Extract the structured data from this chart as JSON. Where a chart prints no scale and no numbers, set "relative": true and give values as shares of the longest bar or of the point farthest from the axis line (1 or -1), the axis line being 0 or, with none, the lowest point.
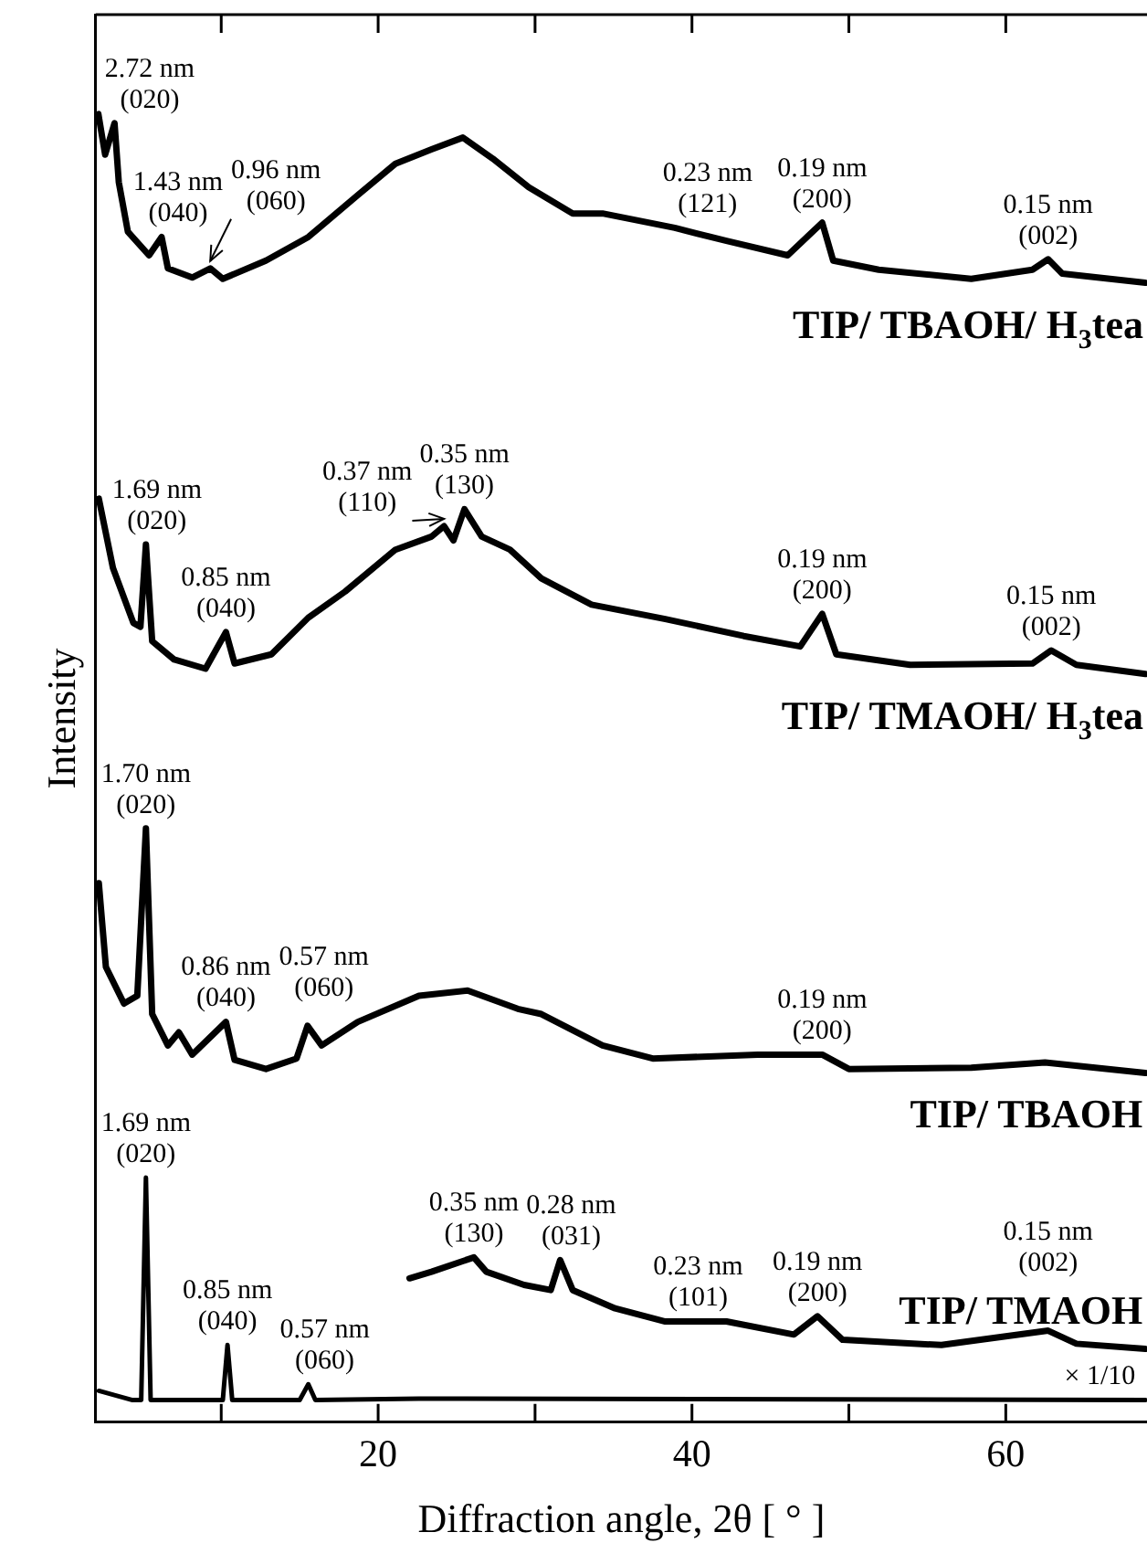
{
  "chart_data": {
    "type": "line",
    "xlabel": "Diffraction angle, 2θ [ ° ]",
    "ylabel": "Intensity",
    "relative": true,
    "xlim": [
      2,
      69
    ],
    "xticks": [
      {
        "value": 10,
        "label": null
      },
      20,
      {
        "value": 30,
        "label": null
      },
      40,
      {
        "value": 50,
        "label": null
      },
      60
    ],
    "legend": false,
    "marker": "none",
    "line_style": "solid",
    "series": [
      {
        "name": "TIP/ TBAOH/ H$_{3}$tea",
        "color": "#000000",
        "x": [
          2.17,
          2.6,
          3.2,
          3.47,
          4.05,
          5.4,
          6.2,
          6.6,
          8.15,
          9.3,
          10.1,
          12.85,
          15.55,
          18.7,
          21.1,
          23.4,
          25.4,
          27.3,
          29.6,
          32.4,
          34.3,
          38.9,
          42.2,
          46.1,
          48.3,
          49.0,
          51.9,
          57.8,
          61.7,
          62.7,
          63.6,
          68.9
        ],
        "values": [
          1.0,
          0.969,
          0.993,
          0.948,
          0.91,
          0.892,
          0.906,
          0.882,
          0.875,
          0.882,
          0.874,
          0.888,
          0.906,
          0.938,
          0.962,
          0.973,
          0.982,
          0.966,
          0.944,
          0.924,
          0.924,
          0.913,
          0.903,
          0.892,
          0.917,
          0.888,
          0.881,
          0.874,
          0.881,
          0.889,
          0.878,
          0.871
        ]
      },
      {
        "name": "TIP/ TMAOH/ H$_{3}$tea",
        "color": "#000000",
        "x": [
          2.2,
          3.1,
          4.4,
          4.85,
          5.2,
          5.6,
          7.0,
          9.0,
          10.3,
          10.85,
          13.2,
          15.55,
          17.9,
          21.1,
          23.4,
          24.2,
          24.8,
          25.5,
          26.6,
          28.4,
          30.4,
          33.6,
          38.3,
          43.3,
          46.9,
          48.3,
          49.2,
          53.9,
          61.7,
          62.9,
          64.5,
          68.9
        ],
        "values": [
          0.706,
          0.653,
          0.611,
          0.608,
          0.671,
          0.597,
          0.583,
          0.576,
          0.604,
          0.58,
          0.587,
          0.615,
          0.635,
          0.667,
          0.677,
          0.685,
          0.674,
          0.698,
          0.677,
          0.667,
          0.645,
          0.625,
          0.614,
          0.601,
          0.593,
          0.618,
          0.587,
          0.579,
          0.58,
          0.59,
          0.579,
          0.572
        ]
      },
      {
        "name": "TIP/ TBAOH",
        "color": "#000000",
        "x": [
          2.2,
          2.65,
          3.8,
          4.65,
          5.2,
          5.6,
          6.6,
          7.3,
          8.15,
          10.3,
          10.85,
          12.85,
          14.8,
          15.5,
          16.4,
          18.7,
          22.6,
          25.7,
          28.9,
          30.4,
          34.3,
          37.5,
          44.2,
          48.3,
          50.0,
          57.8,
          62.5,
          68.9
        ],
        "values": [
          0.412,
          0.348,
          0.32,
          0.326,
          0.454,
          0.312,
          0.288,
          0.298,
          0.281,
          0.306,
          0.277,
          0.27,
          0.278,
          0.303,
          0.288,
          0.306,
          0.326,
          0.33,
          0.316,
          0.312,
          0.288,
          0.278,
          0.281,
          0.281,
          0.27,
          0.271,
          0.275,
          0.267
        ]
      },
      {
        "name": "TIP/ TMAOH",
        "color": "#000000",
        "x": [
          22.0,
          23.4,
          26.1,
          26.9,
          29.3,
          31.0,
          31.6,
          32.4,
          35.1,
          38.3,
          42.2,
          46.5,
          48.0,
          49.6,
          55.9,
          62.7,
          64.5,
          68.9
        ],
        "values": [
          0.11,
          0.115,
          0.126,
          0.115,
          0.105,
          0.101,
          0.124,
          0.101,
          0.087,
          0.077,
          0.077,
          0.067,
          0.081,
          0.063,
          0.059,
          0.07,
          0.06,
          0.056
        ]
      },
      {
        "color": "#000000",
        "x": [
          2.2,
          4.3,
          4.9,
          5.2,
          5.5,
          10.1,
          10.4,
          10.7,
          15.0,
          15.55,
          16.0,
          22.6,
          68.9
        ],
        "values": [
          0.024,
          0.017,
          0.017,
          0.187,
          0.017,
          0.017,
          0.059,
          0.017,
          0.017,
          0.029,
          0.017,
          0.018,
          0.017
        ]
      }
    ],
    "annotations": [
      {
        "text": "2.72 nm (020)",
        "x": 3.2,
        "y": 0.993
      },
      {
        "text": "1.43 nm (040)",
        "x": 6.2,
        "y": 0.906
      },
      {
        "text": "0.96 nm (060)",
        "x": 9.3,
        "y": 0.882
      },
      {
        "text": "0.23 nm (121)",
        "x": 38.9,
        "y": 0.913
      },
      {
        "text": "0.19 nm (200)",
        "x": 48.3,
        "y": 0.917
      },
      {
        "text": "0.15 nm (002)",
        "x": 62.7,
        "y": 0.889
      },
      {
        "text": "1.69 nm (020)",
        "x": 5.2,
        "y": 0.671
      },
      {
        "text": "0.85 nm (040)",
        "x": 10.3,
        "y": 0.604
      },
      {
        "text": "0.35 nm (130)",
        "x": 25.5,
        "y": 0.698
      },
      {
        "text": "0.37 nm (110)",
        "x": 24.2,
        "y": 0.685
      },
      {
        "text": "0.19 nm (200)",
        "x": 48.3,
        "y": 0.618
      },
      {
        "text": "0.15 nm (002)",
        "x": 62.9,
        "y": 0.59
      },
      {
        "text": "1.70 nm (020)",
        "x": 5.2,
        "y": 0.454
      },
      {
        "text": "0.86 nm (040)",
        "x": 10.3,
        "y": 0.306
      },
      {
        "text": "0.57 nm (060)",
        "x": 15.5,
        "y": 0.303
      },
      {
        "text": "0.19 nm (200)",
        "x": 48.3,
        "y": 0.281
      },
      {
        "text": "1.69 nm (020)",
        "x": 5.2,
        "y": 0.187
      },
      {
        "text": "0.85 nm (040)",
        "x": 10.4,
        "y": 0.059
      },
      {
        "text": "0.57 nm (060)",
        "x": 15.55,
        "y": 0.029
      },
      {
        "text": "0.35 nm (130)",
        "x": 26.1,
        "y": 0.126
      },
      {
        "text": "0.28 nm (031)",
        "x": 31.6,
        "y": 0.124
      },
      {
        "text": "0.23 nm (101)",
        "x": 38.3,
        "y": 0.077
      },
      {
        "text": "0.19 nm (200)",
        "x": 48.0,
        "y": 0.081
      },
      {
        "text": "0.15 nm (002)",
        "x": 62.7,
        "y": 0.07
      },
      {
        "text": "× 1/10",
        "x": 66,
        "y": 0.017
      }
    ]
  }
}
